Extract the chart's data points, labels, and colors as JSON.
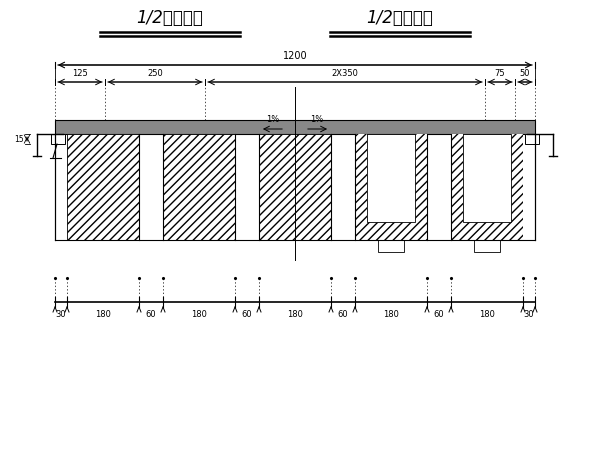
{
  "title_left": "1/2支点截面",
  "title_right": "1/2跨中截面",
  "bg_color": "#ffffff",
  "line_color": "#000000",
  "gray_color": "#888888",
  "bottom_dims": [
    "30",
    "180",
    "60",
    "180",
    "60",
    "180",
    "60",
    "180",
    "60",
    "180",
    "30"
  ],
  "bottom_units": [
    0,
    30,
    210,
    270,
    450,
    510,
    690,
    750,
    930,
    990,
    1170,
    1200
  ],
  "slope_label": "1%",
  "dim_labels_top2": [
    "125",
    "250",
    "2X350",
    "75",
    "50"
  ],
  "dim_units_top2": [
    0,
    125,
    375,
    1075,
    1150,
    1200
  ]
}
